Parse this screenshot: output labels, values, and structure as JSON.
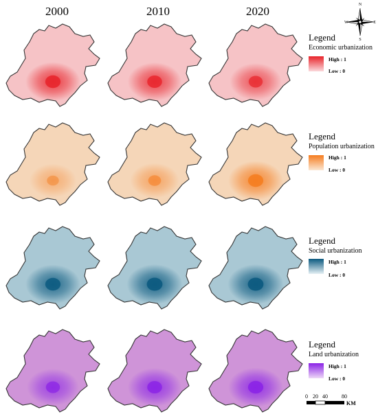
{
  "years": [
    "2000",
    "2010",
    "2020"
  ],
  "compass": {
    "n": "N",
    "s": "S",
    "e": "E",
    "w": "W"
  },
  "scale": {
    "ticks": [
      "0",
      "20",
      "40",
      "80"
    ],
    "unit": "KM"
  },
  "rows": [
    {
      "key": "economic",
      "legend_title": "Legend",
      "legend_sub": "Economic urbanization",
      "high": "High : 1",
      "low": "Low : 0",
      "colors": {
        "base": "#f6c3c6",
        "high": "#e8232a",
        "low": "#fbd9dc"
      },
      "hotspot_intensity": [
        0.85,
        0.8,
        0.7
      ]
    },
    {
      "key": "population",
      "legend_title": "Legend",
      "legend_sub": "Population urbanization",
      "high": "High : 1",
      "low": "Low : 0",
      "colors": {
        "base": "#f5d6b8",
        "high": "#f57c1f",
        "low": "#fbe6d2"
      },
      "hotspot_intensity": [
        0.45,
        0.55,
        0.85
      ]
    },
    {
      "key": "social",
      "legend_title": "Legend",
      "legend_sub": "Social urbanization",
      "high": "High : 1",
      "low": "Low : 0",
      "colors": {
        "base": "#a9c8d4",
        "high": "#0c5a80",
        "low": "#e5f0f4"
      },
      "hotspot_intensity": [
        0.85,
        0.9,
        0.9
      ]
    },
    {
      "key": "land",
      "legend_title": "Legend",
      "legend_sub": "Land urbanization",
      "high": "High : 1",
      "low": "Low : 0",
      "colors": {
        "base": "#cf94d8",
        "high": "#8a22e6",
        "low": "#edd8f6"
      },
      "hotspot_intensity": [
        0.7,
        0.8,
        0.85
      ]
    }
  ]
}
